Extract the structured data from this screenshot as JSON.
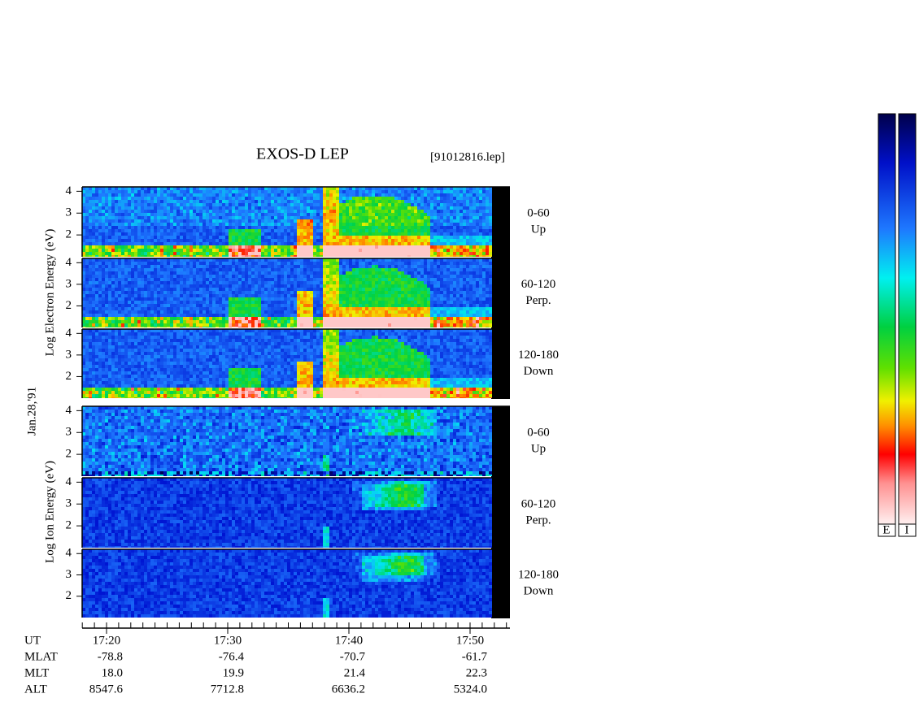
{
  "header": {
    "title": "EXOS-D LEP",
    "file": "[91012816.lep]"
  },
  "date": "Jan.28,'91",
  "species": [
    {
      "axis_label": "Log Electron Energy (eV)",
      "colorbar": "E"
    },
    {
      "axis_label": "Log Ion Energy (eV)",
      "colorbar": "I"
    }
  ],
  "channels": [
    {
      "angle": "0-60",
      "direction": "Up"
    },
    {
      "angle": "60-120",
      "direction": "Perp."
    },
    {
      "angle": "120-180",
      "direction": "Down"
    }
  ],
  "energy_ticks": [
    2,
    3,
    4
  ],
  "energy_range": [
    1,
    4.2
  ],
  "footer": {
    "rows": [
      [
        "UT",
        "17:20",
        "17:30",
        "17:40",
        "17:50"
      ],
      [
        "MLAT",
        "-78.8",
        "-76.4",
        "-70.7",
        "-61.7"
      ],
      [
        "MLT",
        "18.0",
        "19.9",
        "21.4",
        "22.3"
      ],
      [
        "ALT",
        "8547.6",
        "7712.8",
        "6636.2",
        "5324.0"
      ]
    ]
  }
}
